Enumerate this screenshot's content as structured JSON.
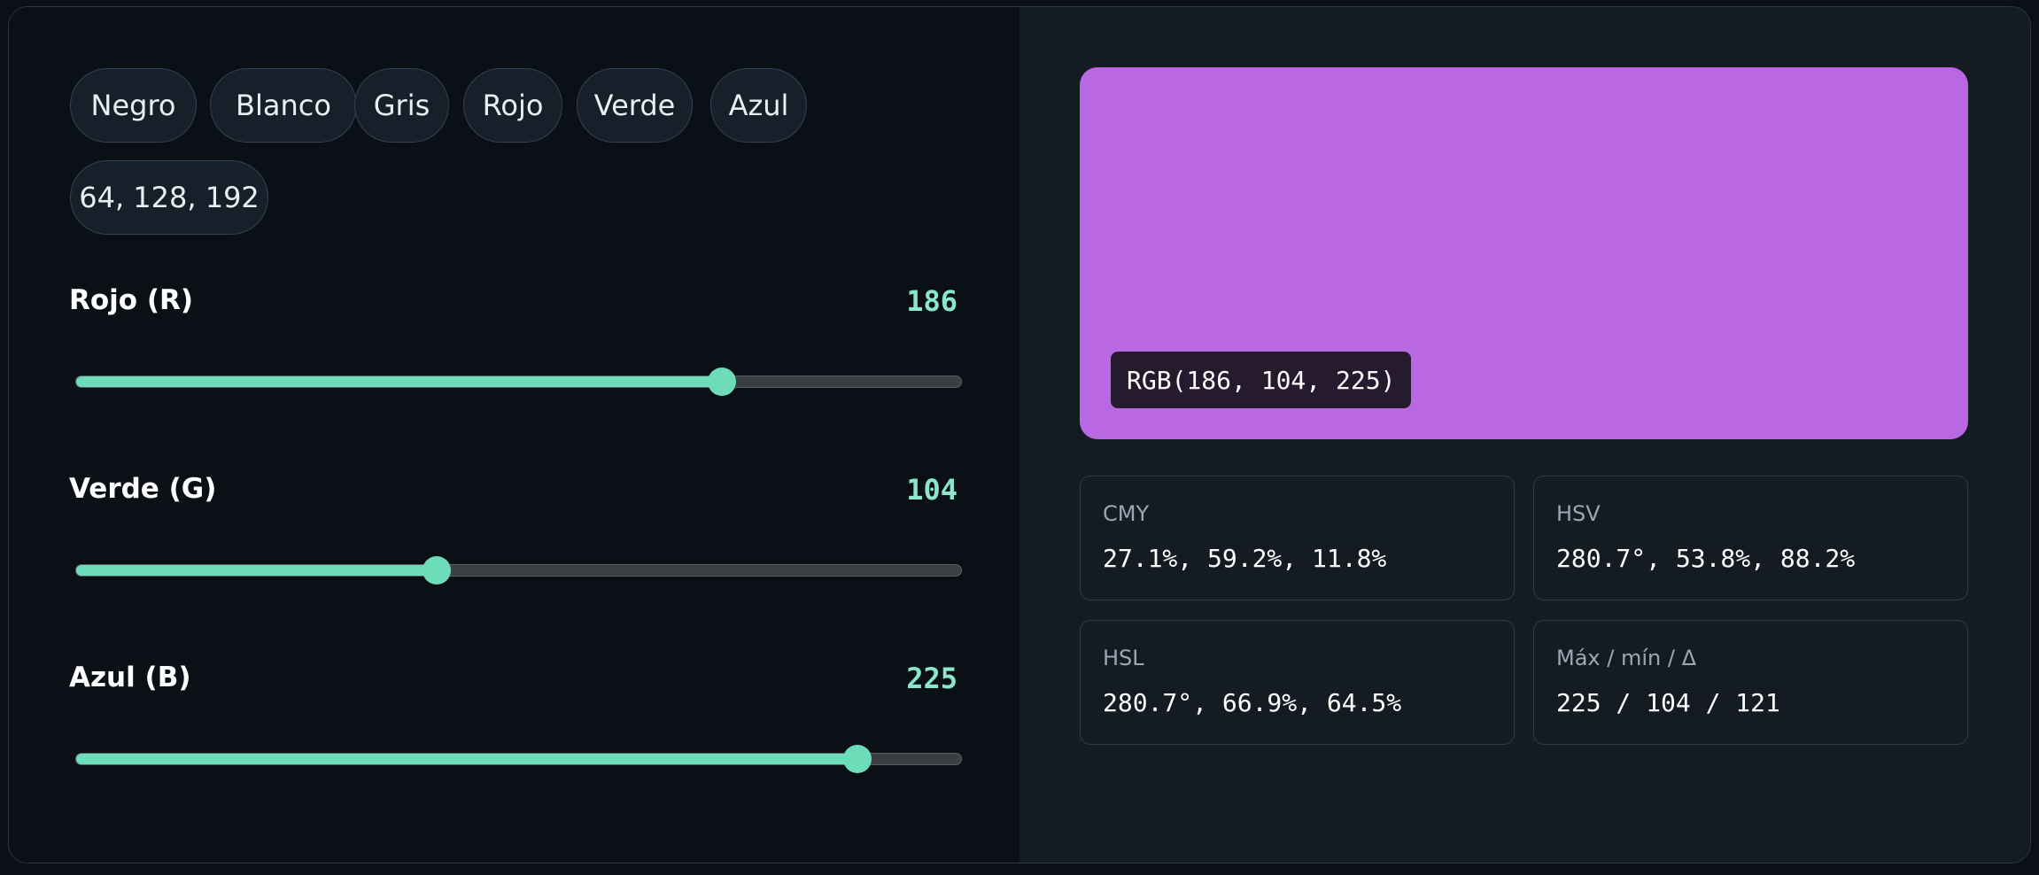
{
  "presets": {
    "items": [
      "Negro",
      "Blanco",
      "Gris",
      "Rojo",
      "Verde",
      "Azul"
    ],
    "custom": "64, 128, 192"
  },
  "sliders": {
    "r": {
      "label": "Rojo (R)",
      "value": "186",
      "fraction": 0.7294
    },
    "g": {
      "label": "Verde (G)",
      "value": "104",
      "fraction": 0.4078
    },
    "b": {
      "label": "Azul (B)",
      "value": "225",
      "fraction": 0.8824
    }
  },
  "preview": {
    "color": "#ba68e1",
    "rgb_label": "RGB(186, 104, 225)"
  },
  "cards": {
    "cmy": {
      "title": "CMY",
      "value": "27.1%, 59.2%, 11.8%"
    },
    "hsv": {
      "title": "HSV",
      "value": "280.7°, 53.8%, 88.2%"
    },
    "hsl": {
      "title": "HSL",
      "value": "280.7°, 66.9%, 64.5%"
    },
    "stats": {
      "title": "Máx / mín / Δ",
      "value": "225 / 104 / 121"
    }
  },
  "colors": {
    "accent": "#6ddcb9",
    "value_text": "#8ae6cd"
  }
}
